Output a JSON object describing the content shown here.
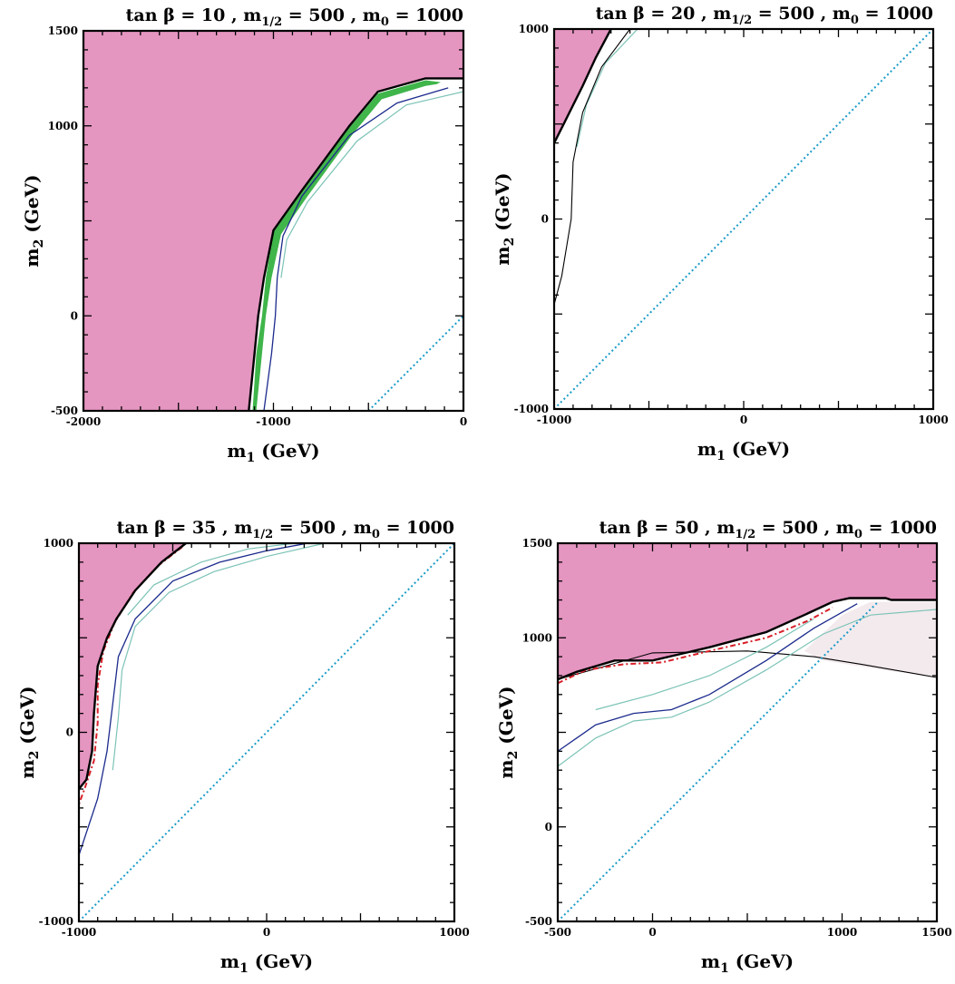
{
  "chart_data": [
    {
      "type": "contour",
      "title_parts": {
        "pre": "tan β = 10 ,  m",
        "sub": "1/2",
        "post": " = 500 ,  m",
        "sub2": "0",
        "post2": " = 1000"
      },
      "xlabel": {
        "main": "m",
        "sub": "1",
        "rest": " (GeV)"
      },
      "ylabel": {
        "main": "m",
        "sub": "2",
        "rest": " (GeV)"
      },
      "xlim": [
        -2000,
        0
      ],
      "ylim": [
        -500,
        1500
      ],
      "x_ticks": [
        {
          "v": -2000,
          "label": "-2000"
        },
        {
          "v": -1000,
          "label": "-1000"
        },
        {
          "v": 0,
          "label": "0"
        }
      ],
      "y_ticks": [
        {
          "v": -500,
          "label": "-500"
        },
        {
          "v": 0,
          "label": "0"
        },
        {
          "v": 1000,
          "label": "1000"
        },
        {
          "v": 1500,
          "label": "1500"
        }
      ],
      "excluded_region": [
        [
          -2000,
          1500
        ],
        [
          0,
          1500
        ],
        [
          0,
          1250
        ],
        [
          -200,
          1250
        ],
        [
          -450,
          1180
        ],
        [
          -600,
          1000
        ],
        [
          -850,
          660
        ],
        [
          -1000,
          450
        ],
        [
          -1050,
          200
        ],
        [
          -1080,
          0
        ],
        [
          -1100,
          -200
        ],
        [
          -1130,
          -500
        ],
        [
          -2000,
          -500
        ]
      ],
      "boundary": [
        [
          0,
          1250
        ],
        [
          -200,
          1250
        ],
        [
          -450,
          1180
        ],
        [
          -600,
          1000
        ],
        [
          -850,
          660
        ],
        [
          -1000,
          450
        ],
        [
          -1050,
          200
        ],
        [
          -1080,
          0
        ],
        [
          -1100,
          -200
        ],
        [
          -1130,
          -500
        ]
      ],
      "green_band": [
        [
          -120,
          1230
        ],
        [
          -200,
          1240
        ],
        [
          -450,
          1170
        ],
        [
          -600,
          990
        ],
        [
          -850,
          650
        ],
        [
          -1000,
          440
        ],
        [
          -1040,
          200
        ],
        [
          -1060,
          0
        ],
        [
          -1090,
          -200
        ],
        [
          -1110,
          -500
        ],
        [
          -1090,
          -500
        ],
        [
          -1060,
          -200
        ],
        [
          -1040,
          0
        ],
        [
          -1010,
          200
        ],
        [
          -960,
          430
        ],
        [
          -820,
          630
        ],
        [
          -580,
          960
        ],
        [
          -430,
          1140
        ],
        [
          -200,
          1210
        ],
        [
          -140,
          1220
        ]
      ],
      "navy_curve": [
        [
          -80,
          1200
        ],
        [
          -350,
          1120
        ],
        [
          -600,
          950
        ],
        [
          -850,
          630
        ],
        [
          -950,
          420
        ],
        [
          -980,
          200
        ],
        [
          -990,
          0
        ],
        [
          -1010,
          -200
        ],
        [
          -1050,
          -500
        ]
      ],
      "teal_curve": [
        [
          0,
          1180
        ],
        [
          -300,
          1110
        ],
        [
          -560,
          920
        ],
        [
          -820,
          600
        ],
        [
          -930,
          400
        ],
        [
          -960,
          200
        ]
      ],
      "diagonal": [
        [
          -500,
          -500
        ],
        [
          0,
          0
        ]
      ]
    },
    {
      "type": "contour",
      "title_parts": {
        "pre": "tan β = 20 ,  m",
        "sub": "1/2",
        "post": " = 500 ,  m",
        "sub2": "0",
        "post2": " = 1000"
      },
      "xlabel": {
        "main": "m",
        "sub": "1",
        "rest": " (GeV)"
      },
      "ylabel": {
        "main": "m",
        "sub": "2",
        "rest": " (GeV)"
      },
      "xlim": [
        -1000,
        1000
      ],
      "ylim": [
        -1000,
        1000
      ],
      "x_ticks": [
        {
          "v": -1000,
          "label": "-1000"
        },
        {
          "v": 0,
          "label": "0"
        },
        {
          "v": 1000,
          "label": "1000"
        }
      ],
      "y_ticks": [
        {
          "v": -1000,
          "label": "-1000"
        },
        {
          "v": 0,
          "label": "0"
        },
        {
          "v": 1000,
          "label": "1000"
        }
      ],
      "excluded_region": [
        [
          -1000,
          1000
        ],
        [
          -700,
          1000
        ],
        [
          -780,
          850
        ],
        [
          -850,
          700
        ],
        [
          -950,
          500
        ],
        [
          -1000,
          400
        ]
      ],
      "boundary": [
        [
          -700,
          1000
        ],
        [
          -780,
          850
        ],
        [
          -850,
          700
        ],
        [
          -950,
          500
        ],
        [
          -1000,
          400
        ]
      ],
      "thin_curve": [
        [
          -600,
          1000
        ],
        [
          -750,
          800
        ],
        [
          -850,
          560
        ],
        [
          -900,
          300
        ],
        [
          -910,
          0
        ],
        [
          -960,
          -300
        ],
        [
          -1000,
          -450
        ]
      ],
      "teal_curve": [
        [
          -560,
          1000
        ],
        [
          -730,
          820
        ],
        [
          -830,
          600
        ],
        [
          -880,
          380
        ]
      ],
      "diagonal": [
        [
          -1000,
          -1000
        ],
        [
          1000,
          1000
        ]
      ]
    },
    {
      "type": "contour",
      "title_parts": {
        "pre": "tan β = 35 ,  m",
        "sub": "1/2",
        "post": " = 500 ,  m",
        "sub2": "0",
        "post2": " = 1000"
      },
      "xlabel": {
        "main": "m",
        "sub": "1",
        "rest": " (GeV)"
      },
      "ylabel": {
        "main": "m",
        "sub": "2",
        "rest": " (GeV)"
      },
      "xlim": [
        -1000,
        1000
      ],
      "ylim": [
        -1000,
        1000
      ],
      "x_ticks": [
        {
          "v": -1000,
          "label": "-1000"
        },
        {
          "v": 0,
          "label": "0"
        },
        {
          "v": 1000,
          "label": "1000"
        }
      ],
      "y_ticks": [
        {
          "v": -1000,
          "label": "-1000"
        },
        {
          "v": 0,
          "label": "0"
        },
        {
          "v": 1000,
          "label": "1000"
        }
      ],
      "excluded_region": [
        [
          -1000,
          1000
        ],
        [
          -430,
          1000
        ],
        [
          -560,
          900
        ],
        [
          -700,
          750
        ],
        [
          -800,
          600
        ],
        [
          -850,
          500
        ],
        [
          -900,
          350
        ],
        [
          -920,
          100
        ],
        [
          -930,
          -100
        ],
        [
          -960,
          -250
        ],
        [
          -1000,
          -300
        ]
      ],
      "boundary": [
        [
          -430,
          1000
        ],
        [
          -560,
          900
        ],
        [
          -700,
          750
        ],
        [
          -800,
          600
        ],
        [
          -850,
          500
        ],
        [
          -900,
          350
        ],
        [
          -920,
          100
        ],
        [
          -930,
          -100
        ],
        [
          -960,
          -250
        ],
        [
          -1000,
          -300
        ]
      ],
      "red_dashed": [
        [
          -450,
          980
        ],
        [
          -580,
          880
        ],
        [
          -710,
          740
        ],
        [
          -810,
          580
        ],
        [
          -870,
          430
        ],
        [
          -900,
          250
        ],
        [
          -900,
          50
        ],
        [
          -920,
          -150
        ],
        [
          -970,
          -300
        ],
        [
          -1000,
          -380
        ]
      ],
      "navy_curve": [
        [
          220,
          1000
        ],
        [
          0,
          960
        ],
        [
          -250,
          900
        ],
        [
          -500,
          800
        ],
        [
          -700,
          600
        ],
        [
          -790,
          400
        ],
        [
          -820,
          150
        ],
        [
          -850,
          -100
        ],
        [
          -900,
          -350
        ],
        [
          -1000,
          -650
        ]
      ],
      "teal_curve": [
        [
          310,
          1000
        ],
        [
          0,
          930
        ],
        [
          -280,
          850
        ],
        [
          -520,
          740
        ],
        [
          -700,
          560
        ],
        [
          -770,
          330
        ],
        [
          -790,
          80
        ],
        [
          -820,
          -200
        ]
      ],
      "teal_curve_b": [
        [
          150,
          1000
        ],
        [
          -100,
          970
        ],
        [
          -350,
          900
        ],
        [
          -600,
          780
        ],
        [
          -740,
          620
        ]
      ],
      "diagonal": [
        [
          -1000,
          -1000
        ],
        [
          1000,
          1000
        ]
      ]
    },
    {
      "type": "contour",
      "title_parts": {
        "pre": "tan β = 50 ,  m",
        "sub": "1/2",
        "post": " = 500 ,  m",
        "sub2": "0",
        "post2": " = 1000"
      },
      "xlabel": {
        "main": "m",
        "sub": "1",
        "rest": " (GeV)"
      },
      "ylabel": {
        "main": "m",
        "sub": "2",
        "rest": " (GeV)"
      },
      "xlim": [
        -500,
        1500
      ],
      "ylim": [
        -500,
        1500
      ],
      "x_ticks": [
        {
          "v": -500,
          "label": "-500"
        },
        {
          "v": 0,
          "label": "0"
        },
        {
          "v": 1000,
          "label": "1000"
        },
        {
          "v": 1500,
          "label": "1500"
        }
      ],
      "y_ticks": [
        {
          "v": -500,
          "label": "-500"
        },
        {
          "v": 0,
          "label": "0"
        },
        {
          "v": 1000,
          "label": "1000"
        },
        {
          "v": 1500,
          "label": "1500"
        }
      ],
      "excluded_region": [
        [
          -500,
          1500
        ],
        [
          1500,
          1500
        ],
        [
          1500,
          1200
        ],
        [
          1260,
          1200
        ],
        [
          1230,
          1210
        ],
        [
          1040,
          1210
        ],
        [
          950,
          1190
        ],
        [
          800,
          1120
        ],
        [
          600,
          1030
        ],
        [
          300,
          950
        ],
        [
          0,
          880
        ],
        [
          -200,
          880
        ],
        [
          -400,
          820
        ],
        [
          -500,
          780
        ],
        [
          -500,
          1500
        ]
      ],
      "boundary": [
        [
          -500,
          780
        ],
        [
          -400,
          820
        ],
        [
          -200,
          880
        ],
        [
          0,
          880
        ],
        [
          300,
          950
        ],
        [
          600,
          1030
        ],
        [
          800,
          1120
        ],
        [
          950,
          1190
        ],
        [
          1040,
          1210
        ],
        [
          1230,
          1210
        ],
        [
          1260,
          1200
        ],
        [
          1500,
          1200
        ]
      ],
      "red_dashed": [
        [
          -500,
          760
        ],
        [
          -350,
          830
        ],
        [
          -150,
          860
        ],
        [
          50,
          870
        ],
        [
          300,
          930
        ],
        [
          600,
          1000
        ],
        [
          820,
          1090
        ],
        [
          950,
          1160
        ]
      ],
      "shaded_region": [
        [
          800,
          930
        ],
        [
          1000,
          1120
        ],
        [
          1150,
          1190
        ],
        [
          1500,
          1190
        ],
        [
          1500,
          790
        ],
        [
          1150,
          840
        ],
        [
          900,
          880
        ]
      ],
      "thin_black": [
        [
          -500,
          780
        ],
        [
          0,
          920
        ],
        [
          500,
          930
        ],
        [
          850,
          900
        ],
        [
          1100,
          860
        ],
        [
          1500,
          790
        ]
      ],
      "navy_curve": [
        [
          -500,
          400
        ],
        [
          -300,
          540
        ],
        [
          -100,
          600
        ],
        [
          100,
          620
        ],
        [
          300,
          700
        ],
        [
          600,
          880
        ],
        [
          850,
          1050
        ],
        [
          1080,
          1180
        ]
      ],
      "teal_curve": [
        [
          -500,
          320
        ],
        [
          -300,
          470
        ],
        [
          -100,
          560
        ],
        [
          100,
          580
        ],
        [
          300,
          660
        ],
        [
          600,
          830
        ],
        [
          900,
          1020
        ],
        [
          1150,
          1120
        ],
        [
          1500,
          1150
        ]
      ],
      "teal_curve_b": [
        [
          -300,
          620
        ],
        [
          0,
          700
        ],
        [
          300,
          800
        ],
        [
          600,
          950
        ],
        [
          850,
          1100
        ]
      ],
      "diagonal": [
        [
          -500,
          -500
        ],
        [
          1190,
          1190
        ]
      ]
    }
  ]
}
